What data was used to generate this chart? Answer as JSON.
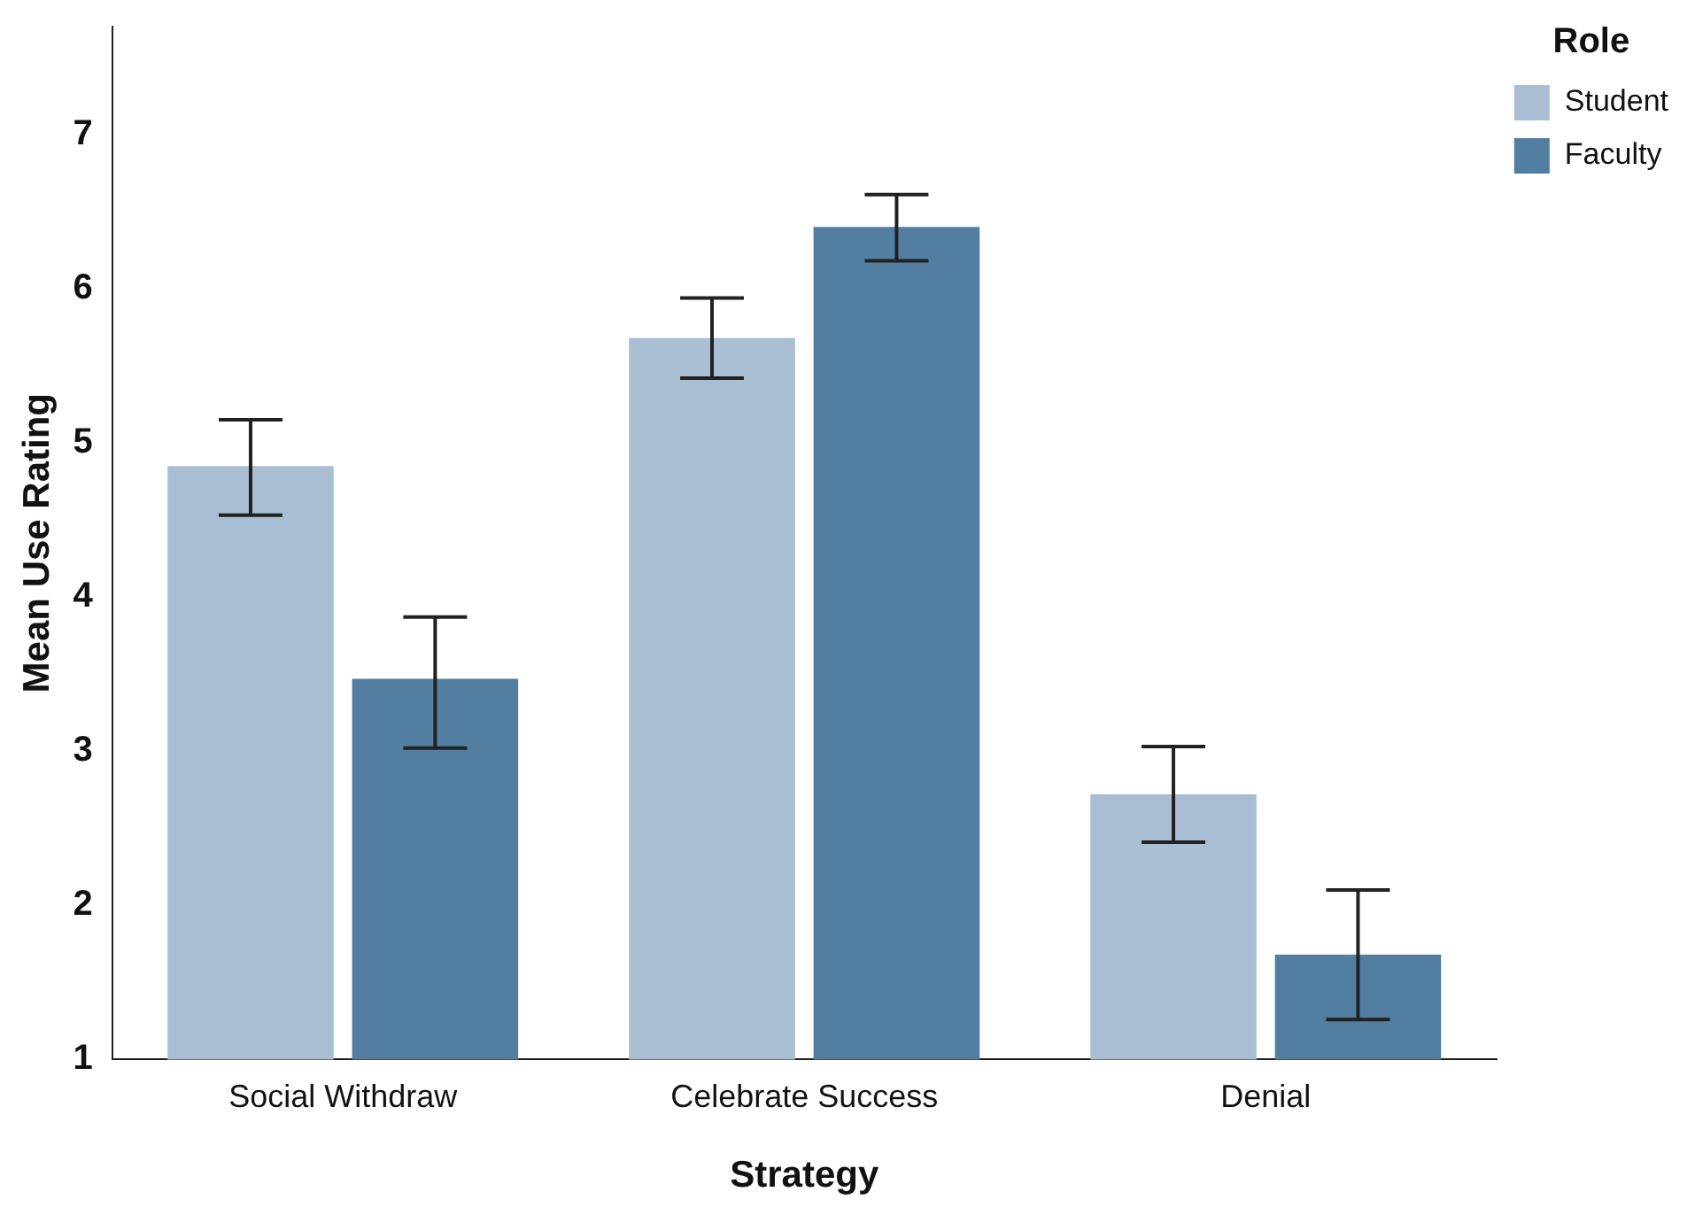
{
  "chart_data": {
    "type": "bar",
    "xlabel": "Strategy",
    "ylabel": "Mean Use Rating",
    "legend_title": "Role",
    "categories": [
      "Social Withdraw",
      "Celebrate Success",
      "Denial"
    ],
    "series": [
      {
        "name": "Student",
        "color": "#a9bed3",
        "values": [
          4.85,
          5.68,
          2.72
        ],
        "errors": [
          [
            4.53,
            5.15
          ],
          [
            5.42,
            5.94
          ],
          [
            2.41,
            3.03
          ]
        ]
      },
      {
        "name": "Faculty",
        "color": "#527ea2",
        "values": [
          3.47,
          6.4,
          1.68
        ],
        "errors": [
          [
            3.02,
            3.87
          ],
          [
            6.18,
            6.61
          ],
          [
            1.26,
            2.1
          ]
        ]
      }
    ],
    "ylim": [
      1,
      7.7
    ],
    "yticks": [
      1,
      2,
      3,
      4,
      5,
      6,
      7
    ],
    "grid": false,
    "legend": "top right"
  }
}
